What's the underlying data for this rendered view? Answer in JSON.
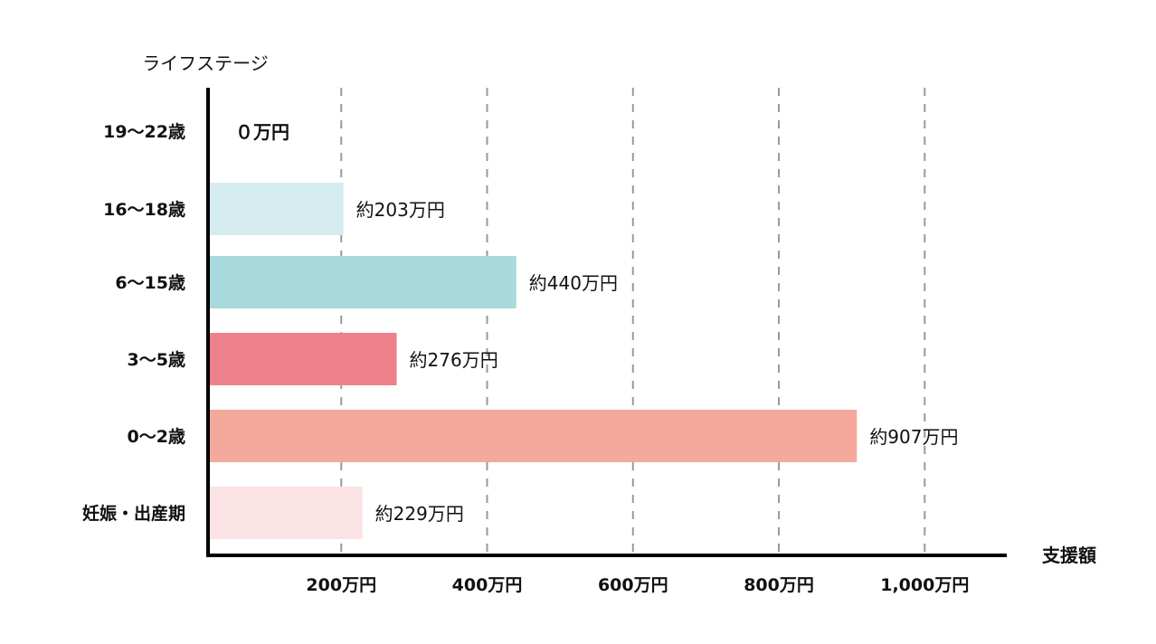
{
  "chart_data": {
    "type": "bar",
    "orientation": "horizontal",
    "title": "",
    "ylabel": "ライフステージ",
    "xlabel": "支援額",
    "categories": [
      "19〜22歳",
      "16〜18歳",
      "6〜15歳",
      "3〜5歳",
      "0〜2歳",
      "妊娠・出産期"
    ],
    "values": [
      0,
      203,
      440,
      276,
      907,
      229
    ],
    "data_labels": [
      "０万円",
      "約203万円",
      "約440万円",
      "約276万円",
      "約907万円",
      "約229万円"
    ],
    "colors": [
      "#ffffff",
      "#d4ebf0",
      "#a8d9dc",
      "#ee818b",
      "#f4a99c",
      "#fbe3e5"
    ],
    "xticks": [
      200,
      400,
      600,
      800,
      1000
    ],
    "xtick_labels": [
      "200万円",
      "400万円",
      "600万円",
      "800万円",
      "1,000万円"
    ],
    "xlim": [
      0,
      1100
    ],
    "grid": "vertical dashed",
    "legend": "none"
  }
}
